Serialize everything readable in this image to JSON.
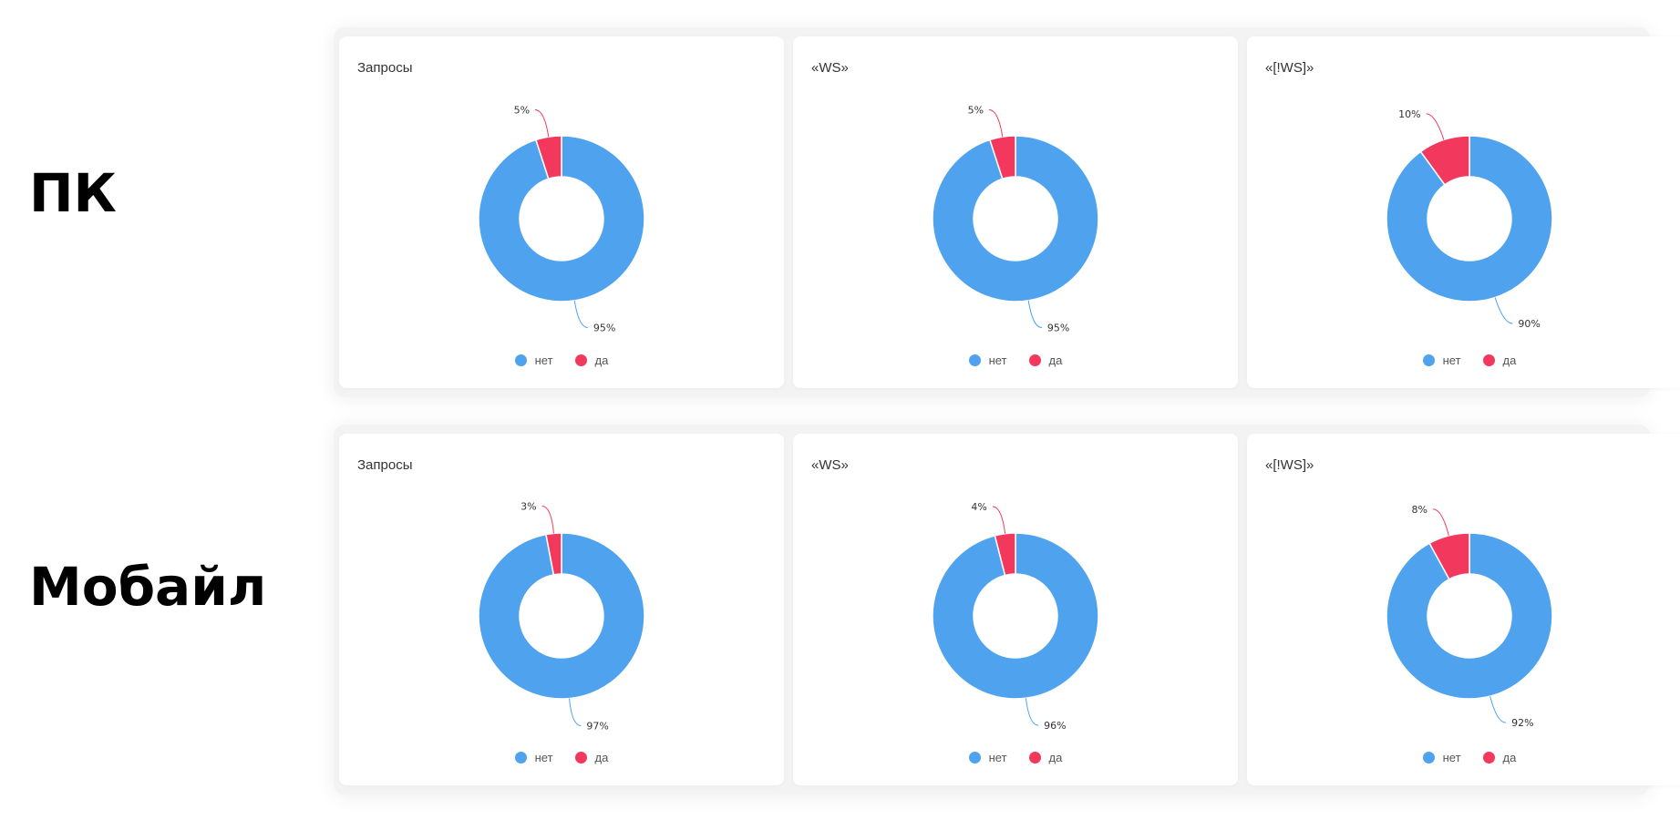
{
  "rows": [
    {
      "label": "ПК"
    },
    {
      "label": "Мобайл"
    }
  ],
  "colors": {
    "net": "#4fa3ee",
    "da": "#f2395d"
  },
  "legend": {
    "net": "нет",
    "da": "да"
  },
  "chart_data": [
    {
      "type": "pie",
      "donut": true,
      "title": "Запросы",
      "row": "ПК",
      "categories": [
        "нет",
        "да"
      ],
      "values": [
        95,
        5
      ],
      "labels": [
        "95%",
        "5%"
      ],
      "legend_position": "bottom"
    },
    {
      "type": "pie",
      "donut": true,
      "title": "«WS»",
      "row": "ПК",
      "categories": [
        "нет",
        "да"
      ],
      "values": [
        95,
        5
      ],
      "labels": [
        "95%",
        "5%"
      ],
      "legend_position": "bottom"
    },
    {
      "type": "pie",
      "donut": true,
      "title": "«[!WS]»",
      "row": "ПК",
      "categories": [
        "нет",
        "да"
      ],
      "values": [
        90,
        10
      ],
      "labels": [
        "90%",
        "10%"
      ],
      "legend_position": "bottom"
    },
    {
      "type": "pie",
      "donut": true,
      "title": "Запросы",
      "row": "Мобайл",
      "categories": [
        "нет",
        "да"
      ],
      "values": [
        97,
        3
      ],
      "labels": [
        "97%",
        "3%"
      ],
      "legend_position": "bottom"
    },
    {
      "type": "pie",
      "donut": true,
      "title": "«WS»",
      "row": "Мобайл",
      "categories": [
        "нет",
        "да"
      ],
      "values": [
        96,
        4
      ],
      "labels": [
        "96%",
        "4%"
      ],
      "legend_position": "bottom"
    },
    {
      "type": "pie",
      "donut": true,
      "title": "«[!WS]»",
      "row": "Мобайл",
      "categories": [
        "нет",
        "да"
      ],
      "values": [
        92,
        8
      ],
      "labels": [
        "92%",
        "8%"
      ],
      "legend_position": "bottom"
    }
  ]
}
